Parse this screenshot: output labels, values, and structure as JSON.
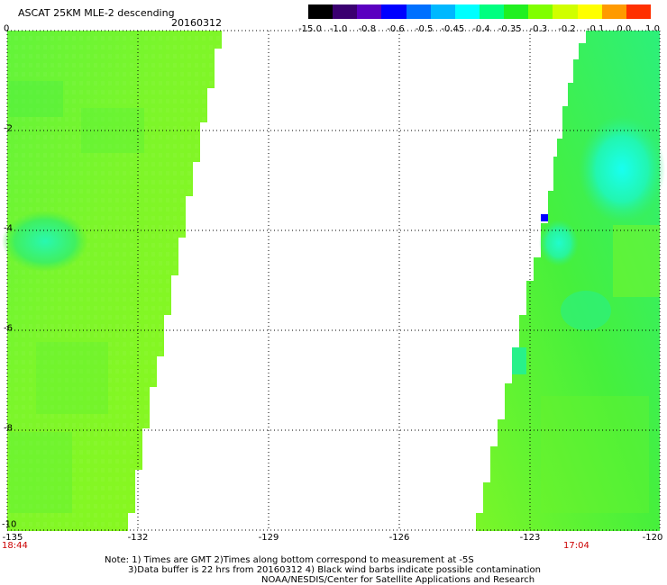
{
  "title": "ASCAT 25KM MLE-2 descending",
  "date": "20160312",
  "colorbar": {
    "labels": [
      "-15.0",
      "-1.0",
      "-0.8",
      "-0.6",
      "-0.5",
      "-0.45",
      "-0.4",
      "-0.35",
      "-0.3",
      "-0.2",
      "-0.1",
      "0.0",
      "1.0"
    ],
    "colors": [
      "#000000",
      "#3a0070",
      "#5a00c0",
      "#0000ff",
      "#0070ff",
      "#00b8ff",
      "#00ffff",
      "#00ff80",
      "#20f020",
      "#80ff00",
      "#d0ff00",
      "#ffff00",
      "#ff9a00",
      "#ff3000"
    ]
  },
  "y_ticks": [
    "0",
    "-2",
    "-4",
    "-6",
    "-8",
    "-10"
  ],
  "x_ticks": [
    "-135",
    "-132",
    "-129",
    "-126",
    "-123",
    "-120"
  ],
  "times": {
    "left": "18:44",
    "right": "17:04"
  },
  "notes": [
    "Note: 1) Times are GMT 2)Times along bottom correspond to measurement at -5S",
    "3)Data buffer is 22 hrs from 20160312 4) Black wind barbs indicate possible contamination",
    "NOAA/NESDIS/Center for Satellite Applications and Research"
  ],
  "colors": {
    "swath_green": "#4cf02a",
    "swath_yellowgreen": "#8ef81a",
    "swath_cyan": "#19f5c8",
    "outlier_blue": "#0000ff",
    "time_red": "#cc0000"
  }
}
